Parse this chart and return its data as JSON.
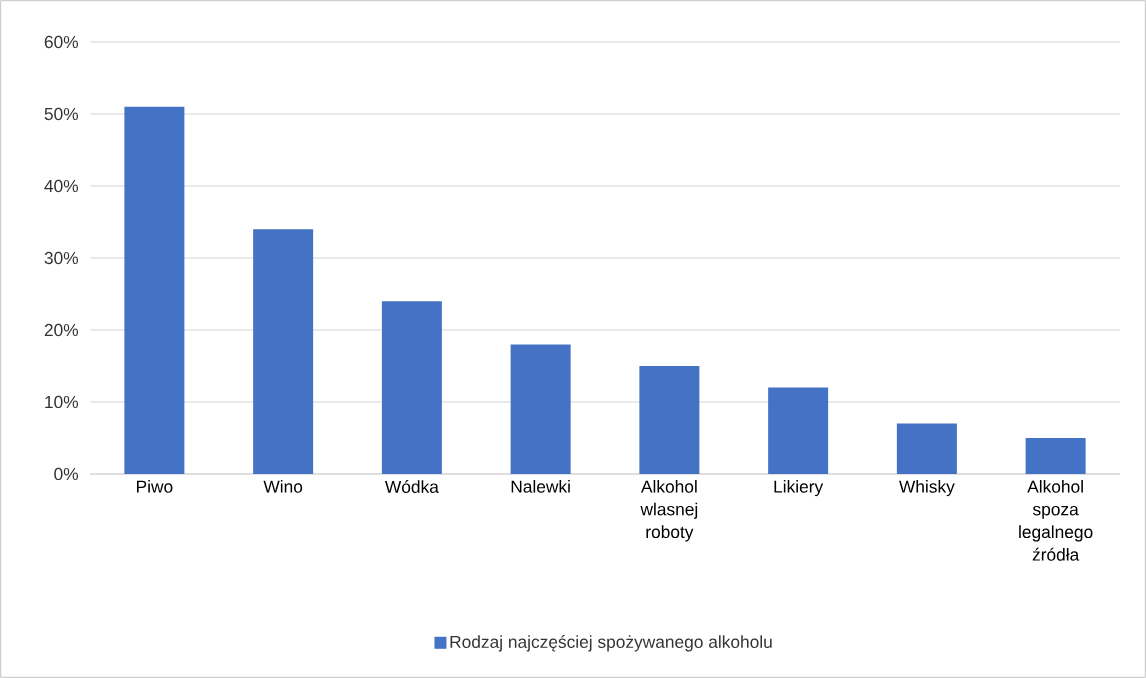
{
  "chart_data": {
    "type": "bar",
    "categories": [
      "Piwo",
      "Wino",
      "Wódka",
      "Nalewki",
      "Alkohol wlasnej roboty",
      "Likiery",
      "Whisky",
      "Alkohol spoza legalnego źródła"
    ],
    "series": [
      {
        "name": "Rodzaj najczęściej spożywanego alkoholu",
        "color": "#4472c4",
        "values": [
          51,
          34,
          24,
          18,
          15,
          12,
          7,
          5
        ]
      }
    ],
    "ylim": [
      0,
      60
    ],
    "yticks": [
      {
        "value": 0,
        "label": "0%"
      },
      {
        "value": 10,
        "label": "10%"
      },
      {
        "value": 20,
        "label": "20%"
      },
      {
        "value": 30,
        "label": "30%"
      },
      {
        "value": 40,
        "label": "40%"
      },
      {
        "value": 50,
        "label": "50%"
      },
      {
        "value": 60,
        "label": "60%"
      }
    ],
    "grid": "y",
    "legend": "bottom"
  }
}
